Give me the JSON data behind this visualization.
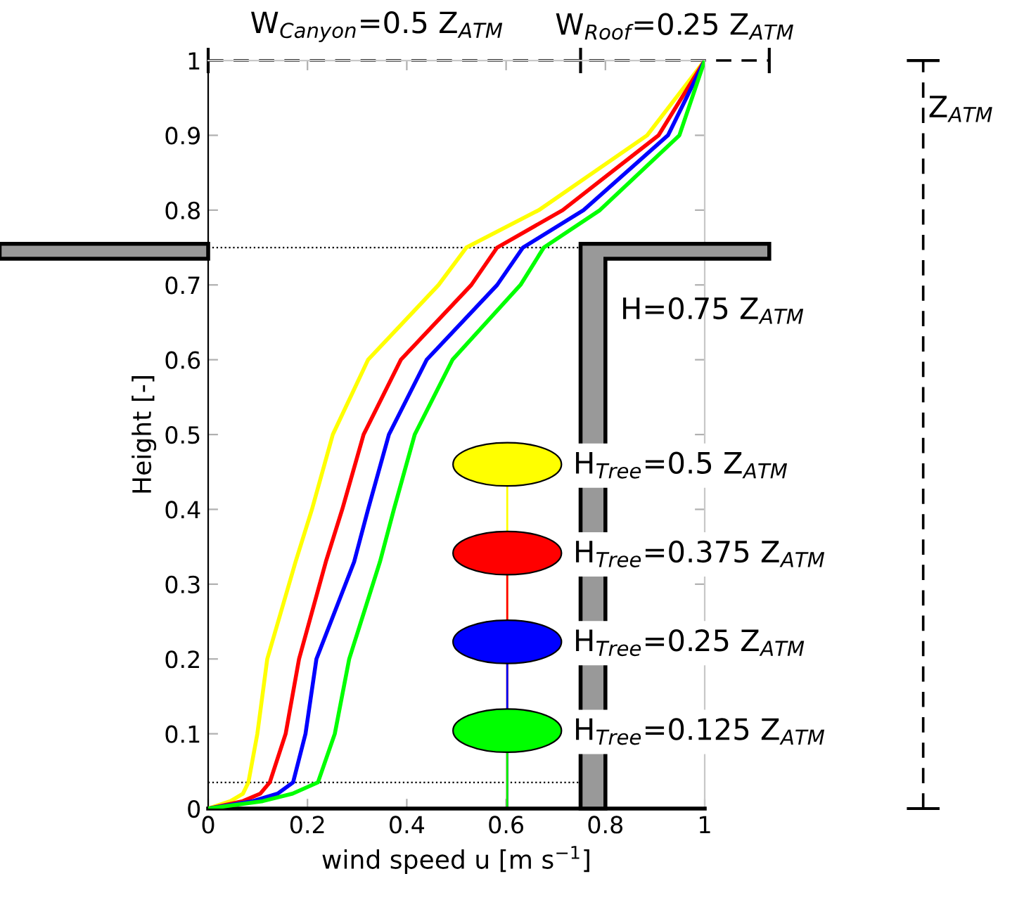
{
  "chart_data": {
    "type": "line",
    "xlabel": "wind speed u [m s$^{−1}$]",
    "ylabel": "Height [-]",
    "xlim": [
      0,
      1
    ],
    "ylim": [
      0,
      1
    ],
    "xticks": [
      0,
      0.2,
      0.4,
      0.6,
      0.8,
      1
    ],
    "yticks": [
      0,
      0.1,
      0.2,
      0.3,
      0.4,
      0.5,
      0.6,
      0.7,
      0.8,
      0.9,
      1
    ],
    "grid": false,
    "legend": "bottom right",
    "marker": "none",
    "line_style": "solid",
    "series": [
      {
        "name": "H$_{Tree}$=0.5 Z$_{ATM}$",
        "color": "#ffff00",
        "x": [
          0,
          0.045,
          0.07,
          0.081,
          0.099,
          0.119,
          0.176,
          0.209,
          0.251,
          0.322,
          0.464,
          0.52,
          0.666,
          0.884,
          1
        ],
        "values": [
          0,
          0.01,
          0.02,
          0.035,
          0.1,
          0.2,
          0.33,
          0.4,
          0.5,
          0.6,
          0.7,
          0.75,
          0.8,
          0.9,
          1
        ]
      },
      {
        "name": "H$_{Tree}$=0.375 Z$_{ATM}$",
        "color": "#ff0000",
        "x": [
          0,
          0.07,
          0.105,
          0.124,
          0.156,
          0.183,
          0.237,
          0.27,
          0.313,
          0.388,
          0.53,
          0.582,
          0.714,
          0.907,
          1
        ],
        "values": [
          0,
          0.01,
          0.02,
          0.035,
          0.1,
          0.2,
          0.33,
          0.4,
          0.5,
          0.6,
          0.7,
          0.75,
          0.8,
          0.9,
          1
        ]
      },
      {
        "name": "H$_{Tree}$=0.25 Z$_{ATM}$",
        "color": "#0000ff",
        "x": [
          0,
          0.09,
          0.14,
          0.171,
          0.196,
          0.218,
          0.294,
          0.322,
          0.364,
          0.44,
          0.582,
          0.634,
          0.756,
          0.926,
          1
        ],
        "values": [
          0,
          0.01,
          0.02,
          0.035,
          0.1,
          0.2,
          0.33,
          0.4,
          0.5,
          0.6,
          0.7,
          0.75,
          0.8,
          0.9,
          1
        ]
      },
      {
        "name": "H$_{Tree}$=0.125 Z$_{ATM}$",
        "color": "#00ff00",
        "x": [
          0,
          0.11,
          0.17,
          0.221,
          0.255,
          0.284,
          0.346,
          0.374,
          0.416,
          0.492,
          0.629,
          0.676,
          0.789,
          0.949,
          1
        ],
        "values": [
          0,
          0.01,
          0.02,
          0.035,
          0.1,
          0.2,
          0.33,
          0.4,
          0.5,
          0.6,
          0.7,
          0.75,
          0.8,
          0.9,
          1
        ]
      }
    ],
    "ref_lines": [
      {
        "axis": "y",
        "value": 0.75,
        "color": "#000000",
        "line_style": "dotted"
      },
      {
        "axis": "y",
        "value": 0.035,
        "color": "#000000",
        "line_style": "dotted"
      }
    ],
    "annotations": [
      "W$_{Canyon}$=0.5 Z$_{ATM}$",
      "W$_{Roof}$=0.25 Z$_{ATM}$",
      "Z$_{ATM}$",
      "H=0.75 Z$_{ATM}$"
    ]
  }
}
